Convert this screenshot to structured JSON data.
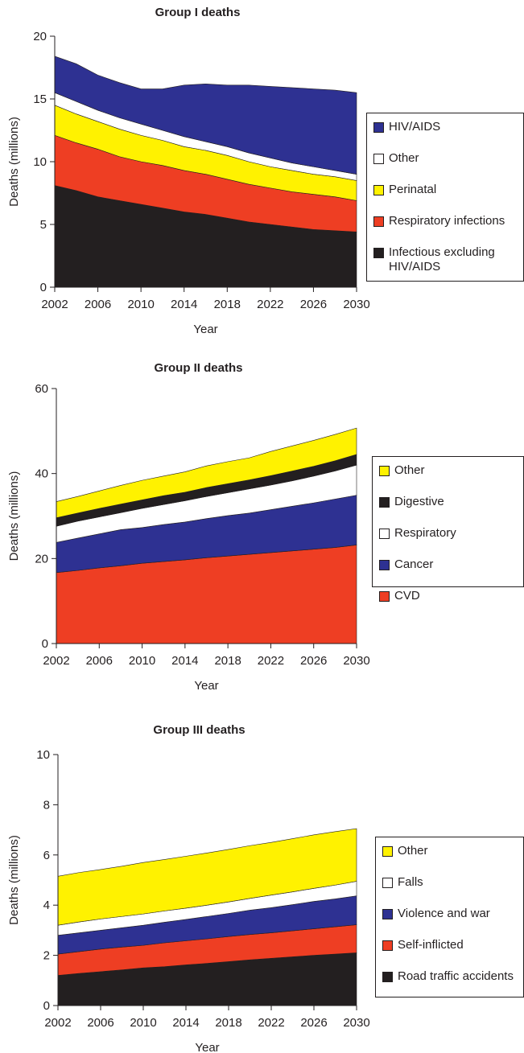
{
  "chart_data": [
    {
      "type": "area",
      "stacked": true,
      "title": "Group I deaths",
      "xlabel": "Year",
      "ylabel": "Deaths (millions)",
      "x": [
        2002,
        2004,
        2006,
        2008,
        2010,
        2012,
        2014,
        2016,
        2018,
        2020,
        2022,
        2024,
        2026,
        2028,
        2030
      ],
      "xlim": [
        2002,
        2030
      ],
      "xticks": [
        2002,
        2006,
        2010,
        2014,
        2018,
        2022,
        2026,
        2030
      ],
      "ylim": [
        0,
        20
      ],
      "yticks": [
        0,
        5,
        10,
        15,
        20
      ],
      "grid": false,
      "series": [
        {
          "name": "Infectious excluding HIV/AIDS",
          "color": "#231f20",
          "values": [
            8.1,
            7.7,
            7.2,
            6.9,
            6.6,
            6.3,
            6.0,
            5.8,
            5.5,
            5.2,
            5.0,
            4.8,
            4.6,
            4.5,
            4.4
          ]
        },
        {
          "name": "Respiratory infections",
          "color": "#ee3e23",
          "values": [
            4.0,
            3.8,
            3.8,
            3.5,
            3.4,
            3.4,
            3.3,
            3.2,
            3.1,
            3.0,
            2.9,
            2.8,
            2.8,
            2.7,
            2.5
          ]
        },
        {
          "name": "Perinatal",
          "color": "#fff200",
          "values": [
            2.4,
            2.3,
            2.2,
            2.2,
            2.1,
            2.0,
            1.9,
            1.9,
            1.9,
            1.8,
            1.7,
            1.7,
            1.6,
            1.6,
            1.6
          ]
        },
        {
          "name": "Other",
          "color": "#ffffff",
          "values": [
            1.0,
            1.0,
            0.9,
            0.9,
            0.9,
            0.8,
            0.8,
            0.7,
            0.7,
            0.7,
            0.7,
            0.6,
            0.6,
            0.5,
            0.5
          ]
        },
        {
          "name": "HIV/AIDS",
          "color": "#2e3192",
          "values": [
            2.9,
            3.0,
            2.8,
            2.8,
            2.8,
            3.3,
            4.1,
            4.6,
            4.9,
            5.4,
            5.7,
            6.0,
            6.2,
            6.4,
            6.5
          ]
        }
      ]
    },
    {
      "type": "area",
      "stacked": true,
      "title": "Group II deaths",
      "xlabel": "Year",
      "ylabel": "Deaths (millions)",
      "x": [
        2002,
        2004,
        2006,
        2008,
        2010,
        2012,
        2014,
        2016,
        2018,
        2020,
        2022,
        2024,
        2026,
        2028,
        2030
      ],
      "xlim": [
        2002,
        2030
      ],
      "xticks": [
        2002,
        2006,
        2010,
        2014,
        2018,
        2022,
        2026,
        2030
      ],
      "ylim": [
        0,
        60
      ],
      "yticks": [
        0,
        20,
        40,
        60
      ],
      "grid": false,
      "series": [
        {
          "name": "CVD",
          "color": "#ee3e23",
          "values": [
            16.7,
            17.2,
            17.8,
            18.3,
            18.9,
            19.3,
            19.7,
            20.2,
            20.6,
            21.0,
            21.4,
            21.8,
            22.2,
            22.6,
            23.2
          ]
        },
        {
          "name": "Cancer",
          "color": "#2e3192",
          "values": [
            7.1,
            7.6,
            8.0,
            8.5,
            8.4,
            8.7,
            8.9,
            9.2,
            9.5,
            9.7,
            10.1,
            10.5,
            10.9,
            11.4,
            11.7
          ]
        },
        {
          "name": "Respiratory",
          "color": "#ffffff",
          "values": [
            3.8,
            4.0,
            4.0,
            4.0,
            4.5,
            4.7,
            5.0,
            5.2,
            5.4,
            5.7,
            5.8,
            6.0,
            6.3,
            6.6,
            7.1
          ]
        },
        {
          "name": "Digestive",
          "color": "#231f20",
          "values": [
            2.0,
            1.9,
            2.0,
            2.0,
            2.0,
            2.1,
            2.0,
            2.1,
            2.1,
            2.1,
            2.2,
            2.3,
            2.3,
            2.4,
            2.5
          ]
        },
        {
          "name": "Other",
          "color": "#fff200",
          "values": [
            3.8,
            3.9,
            4.1,
            4.4,
            4.6,
            4.6,
            4.8,
            5.1,
            5.2,
            5.2,
            5.7,
            5.9,
            6.1,
            6.2,
            6.2
          ]
        }
      ]
    },
    {
      "type": "area",
      "stacked": true,
      "title": "Group III deaths",
      "xlabel": "Year",
      "ylabel": "Deaths (millions)",
      "x": [
        2002,
        2004,
        2006,
        2008,
        2010,
        2012,
        2014,
        2016,
        2018,
        2020,
        2022,
        2024,
        2026,
        2028,
        2030
      ],
      "xlim": [
        2002,
        2030
      ],
      "xticks": [
        2002,
        2006,
        2010,
        2014,
        2018,
        2022,
        2026,
        2030
      ],
      "ylim": [
        0,
        10
      ],
      "yticks": [
        0,
        2,
        4,
        6,
        8,
        10
      ],
      "grid": false,
      "series": [
        {
          "name": "Road traffic accidents",
          "color": "#231f20",
          "values": [
            1.2,
            1.28,
            1.35,
            1.42,
            1.5,
            1.55,
            1.62,
            1.68,
            1.75,
            1.82,
            1.88,
            1.94,
            2.0,
            2.05,
            2.1
          ]
        },
        {
          "name": "Self-inflicted",
          "color": "#ee3e23",
          "values": [
            0.85,
            0.87,
            0.9,
            0.91,
            0.9,
            0.95,
            0.96,
            0.98,
            1.0,
            1.01,
            1.02,
            1.04,
            1.06,
            1.09,
            1.12
          ]
        },
        {
          "name": "Violence and war",
          "color": "#2e3192",
          "values": [
            0.75,
            0.75,
            0.75,
            0.77,
            0.8,
            0.82,
            0.85,
            0.89,
            0.92,
            0.97,
            1.0,
            1.04,
            1.09,
            1.11,
            1.15
          ]
        },
        {
          "name": "Falls",
          "color": "#ffffff",
          "values": [
            0.4,
            0.43,
            0.45,
            0.45,
            0.45,
            0.45,
            0.45,
            0.45,
            0.46,
            0.47,
            0.5,
            0.51,
            0.52,
            0.55,
            0.58
          ]
        },
        {
          "name": "Other",
          "color": "#fff200",
          "values": [
            1.95,
            1.97,
            1.97,
            2.0,
            2.05,
            2.05,
            2.07,
            2.08,
            2.09,
            2.1,
            2.1,
            2.12,
            2.13,
            2.13,
            2.1
          ]
        }
      ]
    }
  ]
}
